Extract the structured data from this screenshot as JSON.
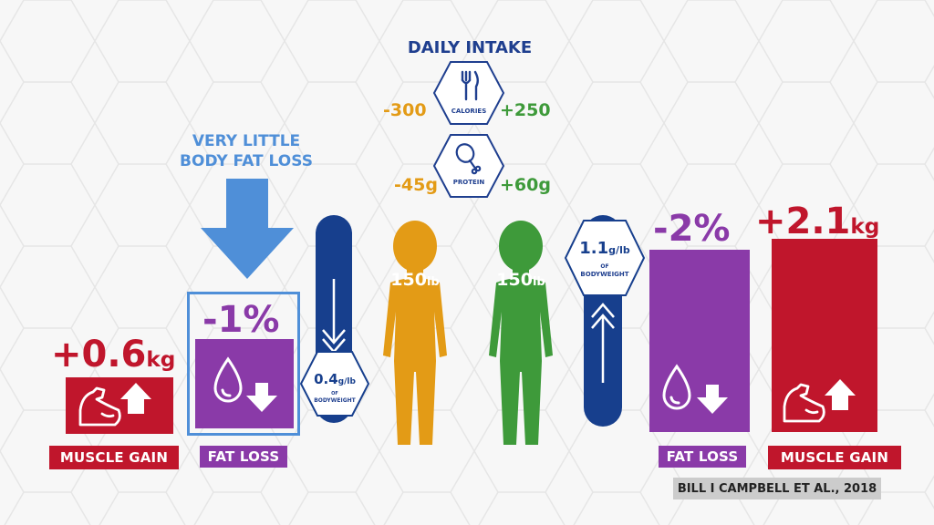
{
  "header": {
    "daily_intake_title": "DAILY INTAKE",
    "calories_label": "CALORIES",
    "calories_low": "-300",
    "calories_high": "+250",
    "protein_label": "PROTEIN",
    "protein_low": "-45g",
    "protein_high": "+60g"
  },
  "callout": {
    "line1": "VERY LITTLE",
    "line2": "BODY FAT LOSS"
  },
  "left_group": {
    "muscle_value": "+0.6",
    "muscle_unit": "kg",
    "muscle_label": "MUSCLE GAIN",
    "fat_value": "-1%",
    "fat_label": "FAT LOSS",
    "protein_value": "0.4",
    "protein_unit": "g/lb",
    "protein_of": "OF",
    "protein_bodyweight": "BODYWEIGHT",
    "weight": "150",
    "weight_unit": "lb"
  },
  "right_group": {
    "weight": "150",
    "weight_unit": "lb",
    "protein_value": "1.1",
    "protein_unit": "g/lb",
    "protein_of": "OF",
    "protein_bodyweight": "BODYWEIGHT",
    "fat_value": "-2%",
    "fat_label": "FAT LOSS",
    "muscle_value": "+2.1",
    "muscle_unit": "kg",
    "muscle_label": "MUSCLE GAIN"
  },
  "citation": "BILL I CAMPBELL ET AL., 2018",
  "colors": {
    "muscle_red": "#c0162c",
    "fat_purple": "#8a3aa8",
    "navy": "#173f8d",
    "orange": "#e39b16",
    "green": "#3e9a3a",
    "callout_blue": "#4f8fd8"
  },
  "chart_data": {
    "type": "bar",
    "categories": [
      "MUSCLE GAIN",
      "FAT LOSS",
      "FAT LOSS",
      "MUSCLE GAIN"
    ],
    "values": [
      0.6,
      -1,
      -2,
      2.1
    ],
    "value_labels": [
      "+0.6kg",
      "-1%",
      "-2%",
      "+2.1kg"
    ],
    "groups": [
      "0.4g/lb",
      "0.4g/lb",
      "1.1g/lb",
      "1.1g/lb"
    ]
  }
}
